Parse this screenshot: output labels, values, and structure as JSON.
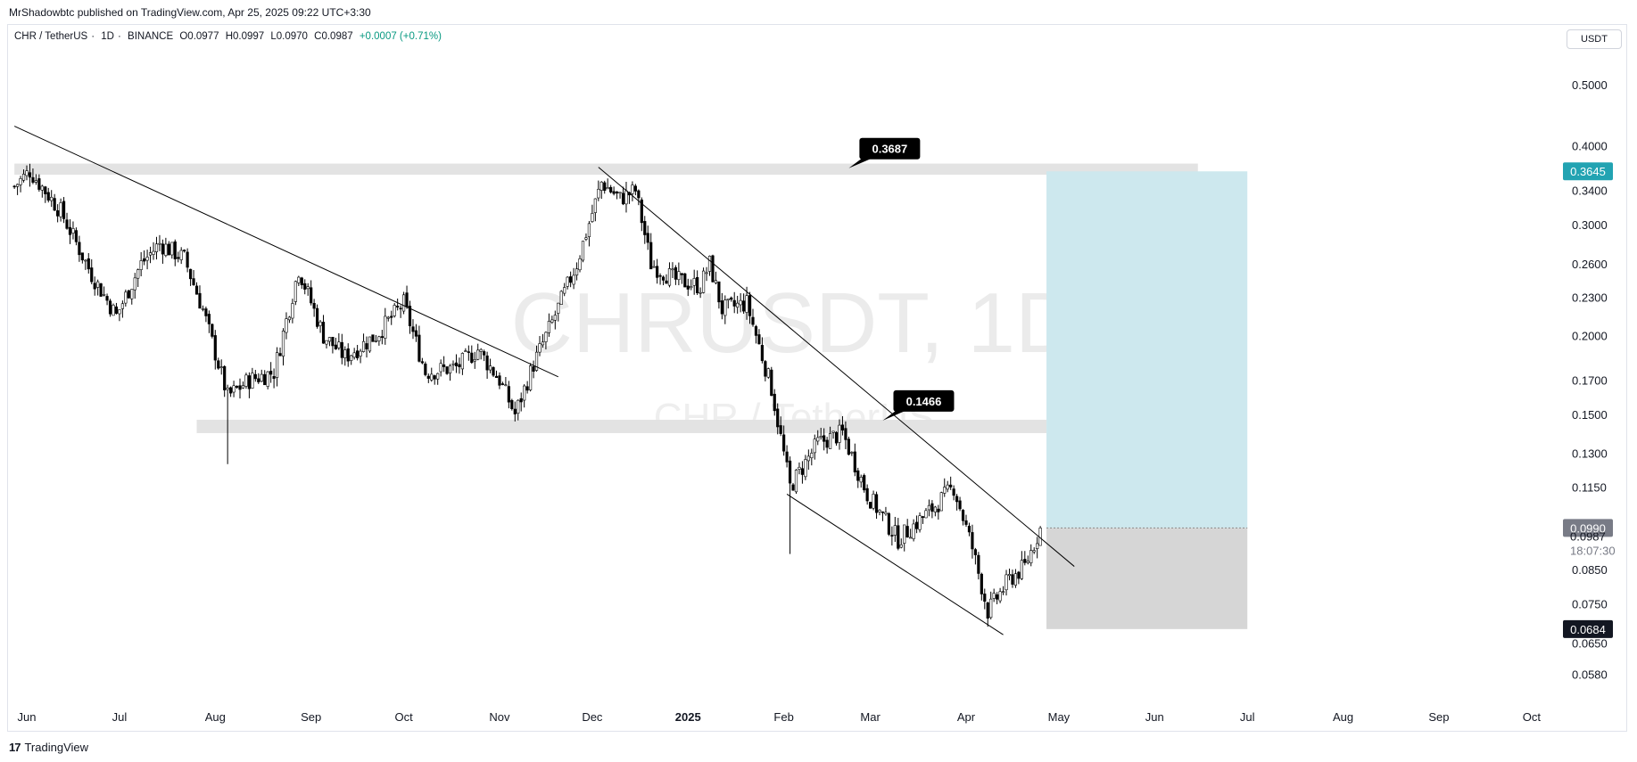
{
  "header": {
    "publish_line": "MrShadowbtc published on TradingView.com, Apr 25, 2025 09:22 UTC+3:30"
  },
  "symbol_info": {
    "pair": "CHR / TetherUS",
    "interval": "1D",
    "exchange": "BINANCE",
    "open": "O0.0977",
    "high": "H0.0997",
    "low": "L0.0970",
    "close": "C0.0987",
    "change": "+0.0007 (+0.71%)",
    "change_color": "#089981"
  },
  "currency_button": "USDT",
  "watermark": {
    "main": "CHRUSDT, 1D",
    "sub": "CHR / TetherUS"
  },
  "footer": {
    "brand": "TradingView",
    "logo": "17"
  },
  "chart_data": {
    "type": "candlestick",
    "title": "CHR / TetherUS · 1D · BINANCE",
    "scale": "log",
    "ylim": [
      0.052,
      0.57
    ],
    "y_ticks": [
      0.5,
      0.4,
      0.34,
      0.3,
      0.26,
      0.23,
      0.2,
      0.17,
      0.15,
      0.13,
      0.115,
      0.085,
      0.075,
      0.065,
      0.058
    ],
    "y_tick_labels": [
      "0.5000",
      "0.4000",
      "0.3400",
      "0.3000",
      "0.2600",
      "0.2300",
      "0.2000",
      "0.1700",
      "0.1500",
      "0.1300",
      "0.1150",
      "0.0850",
      "0.0750",
      "0.0650",
      "0.0580"
    ],
    "x_tick_labels": [
      {
        "label": "Jun",
        "date": "2024-06-01",
        "bold": false
      },
      {
        "label": "Jul",
        "date": "2024-07-01",
        "bold": false
      },
      {
        "label": "Aug",
        "date": "2024-08-01",
        "bold": false
      },
      {
        "label": "Sep",
        "date": "2024-09-01",
        "bold": false
      },
      {
        "label": "Oct",
        "date": "2024-10-01",
        "bold": false
      },
      {
        "label": "Nov",
        "date": "2024-11-01",
        "bold": false
      },
      {
        "label": "Dec",
        "date": "2024-12-01",
        "bold": false
      },
      {
        "label": "2025",
        "date": "2025-01-01",
        "bold": true
      },
      {
        "label": "Feb",
        "date": "2025-02-01",
        "bold": false
      },
      {
        "label": "Mar",
        "date": "2025-03-01",
        "bold": false
      },
      {
        "label": "Apr",
        "date": "2025-04-01",
        "bold": false
      },
      {
        "label": "May",
        "date": "2025-05-01",
        "bold": false
      },
      {
        "label": "Jun",
        "date": "2025-06-01",
        "bold": false
      },
      {
        "label": "Jul",
        "date": "2025-07-01",
        "bold": false
      },
      {
        "label": "Aug",
        "date": "2025-08-01",
        "bold": false
      },
      {
        "label": "Sep",
        "date": "2025-09-01",
        "bold": false
      },
      {
        "label": "Oct",
        "date": "2025-10-01",
        "bold": false
      }
    ],
    "price_key_points": [
      {
        "date": "2024-05-28",
        "price": 0.345
      },
      {
        "date": "2024-06-02",
        "price": 0.365
      },
      {
        "date": "2024-06-12",
        "price": 0.315
      },
      {
        "date": "2024-06-22",
        "price": 0.25
      },
      {
        "date": "2024-06-30",
        "price": 0.215
      },
      {
        "date": "2024-07-08",
        "price": 0.26
      },
      {
        "date": "2024-07-14",
        "price": 0.28
      },
      {
        "date": "2024-07-22",
        "price": 0.265
      },
      {
        "date": "2024-07-28",
        "price": 0.22
      },
      {
        "date": "2024-08-05",
        "price": 0.16
      },
      {
        "date": "2024-08-12",
        "price": 0.17
      },
      {
        "date": "2024-08-20",
        "price": 0.175
      },
      {
        "date": "2024-08-28",
        "price": 0.255
      },
      {
        "date": "2024-09-05",
        "price": 0.2
      },
      {
        "date": "2024-09-12",
        "price": 0.185
      },
      {
        "date": "2024-09-22",
        "price": 0.2
      },
      {
        "date": "2024-10-01",
        "price": 0.225
      },
      {
        "date": "2024-10-08",
        "price": 0.175
      },
      {
        "date": "2024-10-18",
        "price": 0.178
      },
      {
        "date": "2024-10-25",
        "price": 0.19
      },
      {
        "date": "2024-11-01",
        "price": 0.17
      },
      {
        "date": "2024-11-06",
        "price": 0.15
      },
      {
        "date": "2024-11-12",
        "price": 0.18
      },
      {
        "date": "2024-11-18",
        "price": 0.21
      },
      {
        "date": "2024-11-26",
        "price": 0.26
      },
      {
        "date": "2024-12-04",
        "price": 0.35
      },
      {
        "date": "2024-12-10",
        "price": 0.33
      },
      {
        "date": "2024-12-15",
        "price": 0.34
      },
      {
        "date": "2024-12-20",
        "price": 0.26
      },
      {
        "date": "2024-12-28",
        "price": 0.245
      },
      {
        "date": "2025-01-05",
        "price": 0.24
      },
      {
        "date": "2025-01-08",
        "price": 0.26
      },
      {
        "date": "2025-01-12",
        "price": 0.22
      },
      {
        "date": "2025-01-20",
        "price": 0.225
      },
      {
        "date": "2025-01-28",
        "price": 0.165
      },
      {
        "date": "2025-02-03",
        "price": 0.115
      },
      {
        "date": "2025-02-12",
        "price": 0.135
      },
      {
        "date": "2025-02-20",
        "price": 0.14
      },
      {
        "date": "2025-02-28",
        "price": 0.112
      },
      {
        "date": "2025-03-10",
        "price": 0.095
      },
      {
        "date": "2025-03-20",
        "price": 0.105
      },
      {
        "date": "2025-03-28",
        "price": 0.115
      },
      {
        "date": "2025-04-03",
        "price": 0.092
      },
      {
        "date": "2025-04-08",
        "price": 0.073
      },
      {
        "date": "2025-04-15",
        "price": 0.082
      },
      {
        "date": "2025-04-20",
        "price": 0.086
      },
      {
        "date": "2025-04-25",
        "price": 0.0987
      }
    ],
    "annotations": {
      "resistance_zone": {
        "low": 0.36,
        "high": 0.375,
        "start": "2024-05-28",
        "end": "2025-06-15"
      },
      "support_zone": {
        "low": 0.14,
        "high": 0.147,
        "start": "2024-07-26",
        "end": "2025-04-27"
      },
      "callouts": [
        {
          "text": "0.3687",
          "price": 0.3687,
          "date": "2025-02-22"
        },
        {
          "text": "0.1466",
          "price": 0.1466,
          "date": "2025-03-05"
        }
      ],
      "trendlines": [
        {
          "from": {
            "date": "2024-05-28",
            "price": 0.43
          },
          "to": {
            "date": "2024-11-20",
            "price": 0.172
          }
        },
        {
          "from": {
            "date": "2024-12-03",
            "price": 0.37
          },
          "to": {
            "date": "2025-05-06",
            "price": 0.086
          }
        },
        {
          "from": {
            "date": "2025-02-02",
            "price": 0.112
          },
          "to": {
            "date": "2025-04-13",
            "price": 0.067
          }
        }
      ],
      "position": {
        "start": "2025-04-27",
        "end": "2025-07-01",
        "entry": 0.099,
        "target": 0.3645,
        "stop": 0.0684,
        "profit_color": "#cde8ee",
        "loss_color": "#d6d6d6"
      }
    },
    "price_labels": [
      {
        "text": "0.3645",
        "price": 0.3645,
        "bg": "#22a3b2",
        "fg": "#ffffff"
      },
      {
        "text": "0.0990",
        "price": 0.099,
        "bg": "#787b86",
        "fg": "#ffffff"
      },
      {
        "text": "0.0684",
        "price": 0.0684,
        "bg": "#131722",
        "fg": "#ffffff"
      }
    ],
    "last_price": {
      "text": "0.0987",
      "price": 0.0987,
      "countdown": "18:07:30"
    },
    "candle_up_color": "#ffffff",
    "candle_down_color": "#000000",
    "line_color": "#000000"
  }
}
